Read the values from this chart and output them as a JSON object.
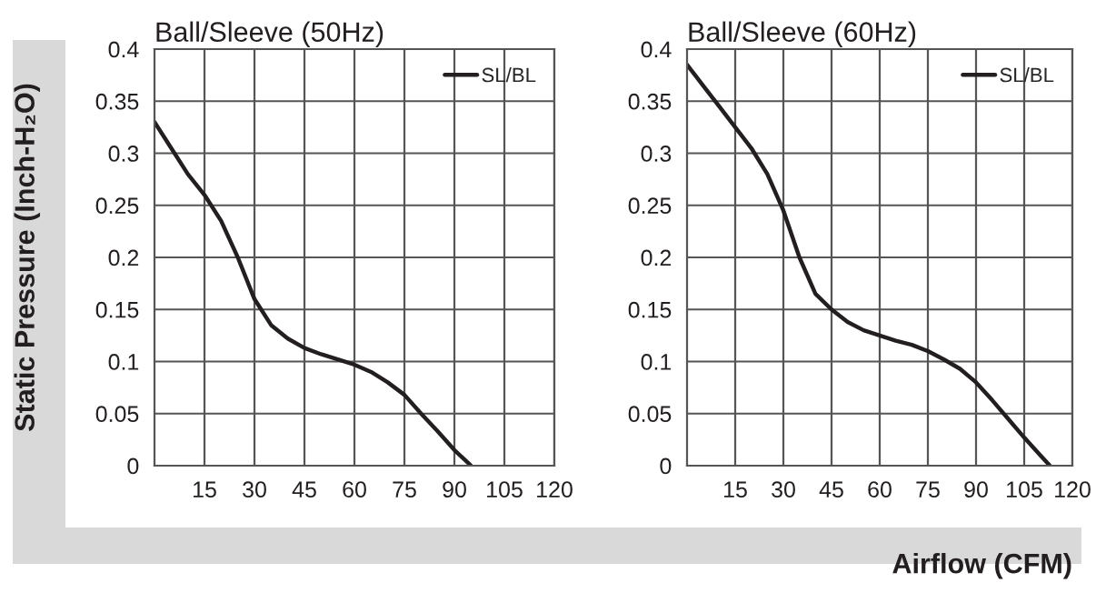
{
  "chart_data": [
    {
      "type": "line",
      "title": "Ball/Sleeve (50Hz)",
      "ylabel": "Static Pressure (Inch-H₂O)",
      "series": [
        {
          "name": "SL/BL",
          "color": "#231f20",
          "x": [
            0,
            5,
            10,
            15,
            20,
            25,
            30,
            35,
            40,
            45,
            50,
            55,
            60,
            65,
            70,
            75,
            80,
            85,
            90,
            95
          ],
          "values": [
            0.33,
            0.305,
            0.28,
            0.26,
            0.235,
            0.2,
            0.16,
            0.135,
            0.122,
            0.113,
            0.107,
            0.102,
            0.097,
            0.09,
            0.08,
            0.068,
            0.05,
            0.033,
            0.015,
            0
          ]
        }
      ],
      "xlim": [
        0,
        120
      ],
      "xticks": [
        15,
        30,
        45,
        60,
        75,
        90,
        105,
        120
      ],
      "ylim": [
        0,
        0.4
      ],
      "yticks": [
        0,
        0.05,
        0.1,
        0.15,
        0.2,
        0.25,
        0.3,
        0.35,
        0.4
      ],
      "grid": true,
      "legend": "top right"
    },
    {
      "type": "line",
      "title": "Ball/Sleeve (60Hz)",
      "xlabel": "Airflow (CFM)",
      "series": [
        {
          "name": "SL/BL",
          "color": "#231f20",
          "x": [
            0,
            5,
            10,
            15,
            20,
            25,
            30,
            35,
            40,
            45,
            50,
            55,
            60,
            65,
            70,
            75,
            80,
            85,
            90,
            95,
            100,
            105,
            110,
            113
          ],
          "values": [
            0.385,
            0.365,
            0.345,
            0.325,
            0.305,
            0.28,
            0.245,
            0.2,
            0.165,
            0.15,
            0.138,
            0.13,
            0.125,
            0.12,
            0.116,
            0.11,
            0.102,
            0.093,
            0.08,
            0.063,
            0.045,
            0.027,
            0.01,
            0
          ]
        }
      ],
      "xlim": [
        0,
        120
      ],
      "xticks": [
        15,
        30,
        45,
        60,
        75,
        90,
        105,
        120
      ],
      "ylim": [
        0,
        0.4
      ],
      "yticks": [
        0,
        0.05,
        0.1,
        0.15,
        0.2,
        0.25,
        0.3,
        0.35,
        0.4
      ],
      "grid": true,
      "legend": "top right"
    }
  ]
}
